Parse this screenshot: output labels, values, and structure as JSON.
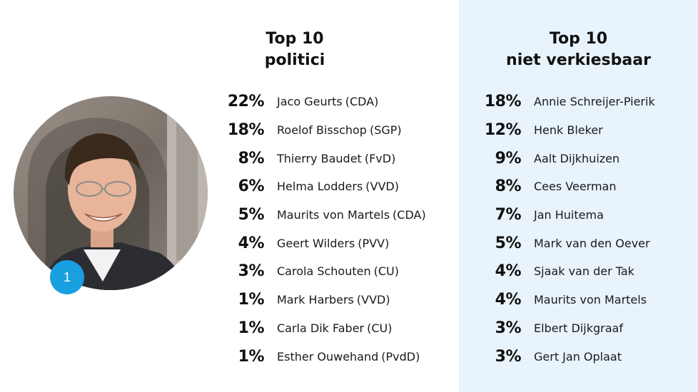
{
  "left_heading": {
    "line1": "Top 10",
    "line2": "politici"
  },
  "right_heading": {
    "line1": "Top 10",
    "line2": "niet verkiesbaar"
  },
  "badge_number": "1",
  "colors": {
    "accent": "#1a9fe0",
    "panel_bg": "#e8f3fc",
    "text": "#1a1a1a"
  },
  "chart_data": [
    {
      "type": "table",
      "title": "Top 10 politici",
      "rows": [
        {
          "pct": "22%",
          "name": "Jaco Geurts",
          "party": "(CDA)",
          "value": 22
        },
        {
          "pct": "18%",
          "name": "Roelof Bisschop",
          "party": "(SGP)",
          "value": 18
        },
        {
          "pct": "8%",
          "name": "Thierry Baudet",
          "party": "(FvD)",
          "value": 8
        },
        {
          "pct": "6%",
          "name": "Helma Lodders",
          "party": "(VVD)",
          "value": 6
        },
        {
          "pct": "5%",
          "name": "Maurits von Martels",
          "party": "(CDA)",
          "value": 5
        },
        {
          "pct": "4%",
          "name": "Geert Wilders",
          "party": "(PVV)",
          "value": 4
        },
        {
          "pct": "3%",
          "name": "Carola Schouten",
          "party": "(CU)",
          "value": 3
        },
        {
          "pct": "1%",
          "name": "Mark Harbers",
          "party": "(VVD)",
          "value": 1
        },
        {
          "pct": "1%",
          "name": "Carla Dik Faber",
          "party": "(CU)",
          "value": 1
        },
        {
          "pct": "1%",
          "name": "Esther Ouwehand",
          "party": "(PvdD)",
          "value": 1
        }
      ]
    },
    {
      "type": "table",
      "title": "Top 10 niet verkiesbaar",
      "rows": [
        {
          "pct": "18%",
          "name": "Annie Schreijer-Pierik",
          "party": "",
          "value": 18
        },
        {
          "pct": "12%",
          "name": "Henk Bleker",
          "party": "",
          "value": 12
        },
        {
          "pct": "9%",
          "name": "Aalt Dijkhuizen",
          "party": "",
          "value": 9
        },
        {
          "pct": "8%",
          "name": "Cees Veerman",
          "party": "",
          "value": 8
        },
        {
          "pct": "7%",
          "name": "Jan Huitema",
          "party": "",
          "value": 7
        },
        {
          "pct": "5%",
          "name": "Mark van den Oever",
          "party": "",
          "value": 5
        },
        {
          "pct": "4%",
          "name": "Sjaak van der Tak",
          "party": "",
          "value": 4
        },
        {
          "pct": "4%",
          "name": "Maurits von Martels",
          "party": "",
          "value": 4
        },
        {
          "pct": "3%",
          "name": "Elbert Dijkgraaf",
          "party": "",
          "value": 3
        },
        {
          "pct": "3%",
          "name": "Gert Jan Oplaat",
          "party": "",
          "value": 3
        }
      ]
    }
  ]
}
